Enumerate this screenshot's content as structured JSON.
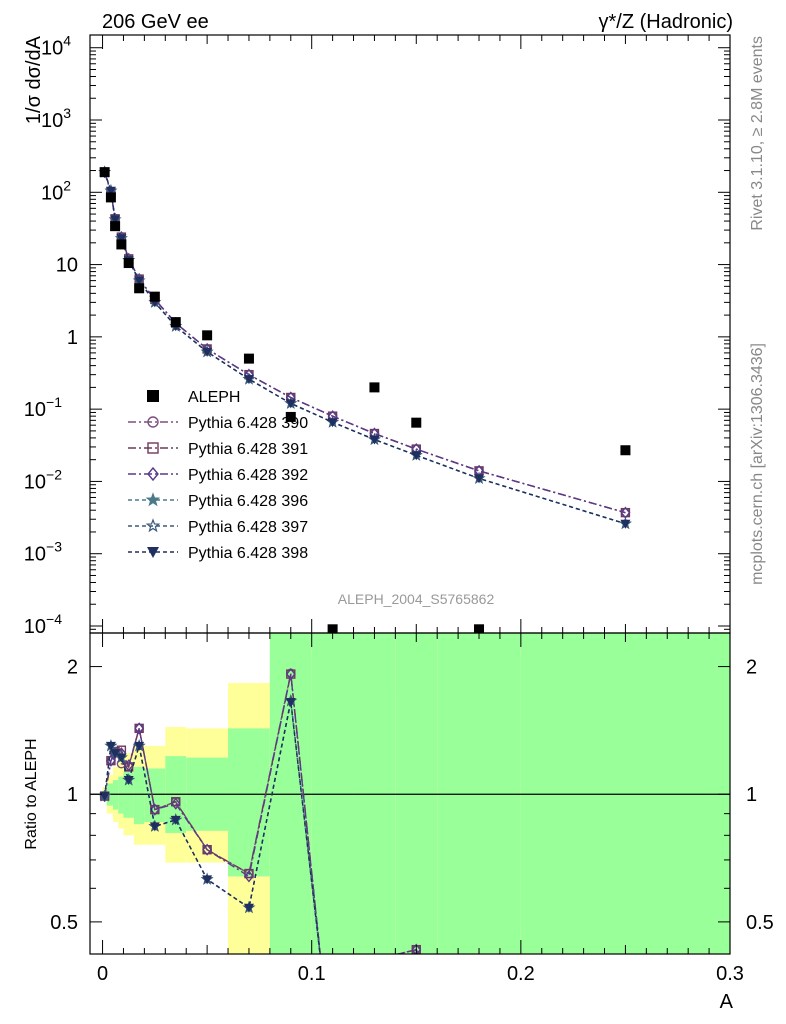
{
  "header": {
    "left": "206 GeV ee",
    "right": "γ*/Z (Hadronic)"
  },
  "side_text": {
    "rivet": "Rivet 3.1.10, ≥ 2.8M events",
    "mcplots": "mcplots.cern.ch [arXiv:1306.3436]"
  },
  "analysis_id": "ALEPH_2004_S5765862",
  "colors": {
    "data": "#000000",
    "p390": "#7f4e7f",
    "p391": "#6e3a5a",
    "p392": "#5a3a8a",
    "p396": "#4a7a8a",
    "p397": "#3a5a7a",
    "p398": "#1f2f5f",
    "band_yellow": "#ffff99",
    "band_green": "#99ff99"
  },
  "chart_data": [
    {
      "type": "scatter",
      "id": "main",
      "ylabel": "1/σ  dσ/dA",
      "y_scale": "log",
      "xlim": [
        -0.006,
        0.3
      ],
      "ylim": [
        8e-05,
        15000
      ],
      "y_ticks": [
        {
          "v": 10000,
          "base": "10",
          "exp": "4"
        },
        {
          "v": 1000,
          "base": "10",
          "exp": "3"
        },
        {
          "v": 100,
          "base": "10",
          "exp": "2"
        },
        {
          "v": 10,
          "base": "10",
          "exp": ""
        },
        {
          "v": 1,
          "base": "1",
          "exp": ""
        },
        {
          "v": 0.1,
          "base": "10",
          "exp": "−1"
        },
        {
          "v": 0.01,
          "base": "10",
          "exp": "−2"
        },
        {
          "v": 0.001,
          "base": "10",
          "exp": "−3"
        },
        {
          "v": 0.0001,
          "base": "10",
          "exp": "−4"
        }
      ],
      "legend_position": "middle-left",
      "series": [
        {
          "name": "ALEPH",
          "key": "data",
          "marker": "square-filled",
          "x": [
            0.001,
            0.004,
            0.006,
            0.009,
            0.0125,
            0.0175,
            0.025,
            0.035,
            0.05,
            0.07,
            0.09,
            0.11,
            0.13,
            0.15,
            0.18,
            0.25
          ],
          "y": [
            190,
            85,
            34,
            19,
            10.5,
            4.7,
            3.6,
            1.6,
            1.05,
            0.5,
            0.078,
            9e-05,
            0.2,
            0.065,
            9e-05,
            0.027
          ]
        },
        {
          "name": "Pythia 6.428 390",
          "key": "p390",
          "marker": "circle-open",
          "dash": "8,3,2,3",
          "x": [
            0.001,
            0.004,
            0.006,
            0.009,
            0.0125,
            0.0175,
            0.025,
            0.035,
            0.05,
            0.07,
            0.09,
            0.11,
            0.13,
            0.15,
            0.18,
            0.25
          ],
          "y": [
            190,
            100,
            43,
            24,
            12,
            6.3,
            3.3,
            1.55,
            0.68,
            0.3,
            0.145,
            0.08,
            0.046,
            0.028,
            0.014,
            0.0037
          ]
        },
        {
          "name": "Pythia 6.428 391",
          "key": "p391",
          "marker": "square-open",
          "dash": "8,3,2,3",
          "x": [
            0.001,
            0.004,
            0.006,
            0.009,
            0.0125,
            0.0175,
            0.025,
            0.035,
            0.05,
            0.07,
            0.09,
            0.11,
            0.13,
            0.15,
            0.18,
            0.25
          ],
          "y": [
            190,
            100,
            43,
            24,
            12,
            6.3,
            3.3,
            1.55,
            0.68,
            0.3,
            0.145,
            0.08,
            0.046,
            0.028,
            0.014,
            0.0037
          ]
        },
        {
          "name": "Pythia 6.428 392",
          "key": "p392",
          "marker": "diamond-open",
          "dash": "8,3,2,3",
          "x": [
            0.001,
            0.004,
            0.006,
            0.009,
            0.0125,
            0.0175,
            0.025,
            0.035,
            0.05,
            0.07,
            0.09,
            0.11,
            0.13,
            0.15,
            0.18,
            0.25
          ],
          "y": [
            190,
            100,
            43,
            24,
            12,
            6.3,
            3.3,
            1.55,
            0.68,
            0.3,
            0.145,
            0.08,
            0.046,
            0.028,
            0.014,
            0.0037
          ]
        },
        {
          "name": "Pythia 6.428 396",
          "key": "p396",
          "marker": "star-filled",
          "dash": "4,3",
          "x": [
            0.001,
            0.004,
            0.006,
            0.009,
            0.0125,
            0.0175,
            0.025,
            0.035,
            0.05,
            0.07,
            0.09,
            0.11,
            0.13,
            0.15,
            0.18,
            0.25
          ],
          "y": [
            190,
            105,
            42,
            23,
            11.5,
            6.0,
            3.0,
            1.4,
            0.62,
            0.26,
            0.12,
            0.066,
            0.038,
            0.023,
            0.011,
            0.0026
          ]
        },
        {
          "name": "Pythia 6.428 397",
          "key": "p397",
          "marker": "star-open",
          "dash": "4,3",
          "x": [
            0.001,
            0.004,
            0.006,
            0.009,
            0.0125,
            0.0175,
            0.025,
            0.035,
            0.05,
            0.07,
            0.09,
            0.11,
            0.13,
            0.15,
            0.18,
            0.25
          ],
          "y": [
            190,
            105,
            42,
            23,
            11.5,
            6.0,
            3.0,
            1.4,
            0.62,
            0.26,
            0.12,
            0.066,
            0.038,
            0.023,
            0.011,
            0.0026
          ]
        },
        {
          "name": "Pythia 6.428 398",
          "key": "p398",
          "marker": "triangle-down-filled",
          "dash": "4,3",
          "x": [
            0.001,
            0.004,
            0.006,
            0.009,
            0.0125,
            0.0175,
            0.025,
            0.035,
            0.05,
            0.07,
            0.09,
            0.11,
            0.13,
            0.15,
            0.18,
            0.25
          ],
          "y": [
            190,
            105,
            42,
            23,
            11.5,
            6.0,
            3.0,
            1.4,
            0.62,
            0.26,
            0.12,
            0.066,
            0.038,
            0.023,
            0.011,
            0.0026
          ]
        }
      ]
    },
    {
      "type": "line",
      "id": "ratio",
      "ylabel": "Ratio to ALEPH",
      "xlabel": "A",
      "y_scale": "log",
      "xlim": [
        -0.006,
        0.3
      ],
      "ylim": [
        0.42,
        2.4
      ],
      "x_ticks": [
        {
          "v": 0,
          "label": "0"
        },
        {
          "v": 0.1,
          "label": "0.1"
        },
        {
          "v": 0.2,
          "label": "0.2"
        },
        {
          "v": 0.3,
          "label": "0.3"
        }
      ],
      "y_ticks": [
        {
          "v": 0.5,
          "label": "0.5"
        },
        {
          "v": 1,
          "label": "1"
        },
        {
          "v": 2,
          "label": "2"
        }
      ],
      "bands": [
        {
          "x0": 0.0,
          "x1": 0.002,
          "y_lo": 0.96,
          "y_hi": 1.04,
          "y2_lo": 0.98,
          "y2_hi": 1.02
        },
        {
          "x0": 0.002,
          "x1": 0.005,
          "y_lo": 0.9,
          "y_hi": 1.11,
          "y2_lo": 0.94,
          "y2_hi": 1.06
        },
        {
          "x0": 0.005,
          "x1": 0.0075,
          "y_lo": 0.86,
          "y_hi": 1.16,
          "y2_lo": 0.92,
          "y2_hi": 1.08
        },
        {
          "x0": 0.0075,
          "x1": 0.01,
          "y_lo": 0.83,
          "y_hi": 1.2,
          "y2_lo": 0.9,
          "y2_hi": 1.1
        },
        {
          "x0": 0.01,
          "x1": 0.015,
          "y_lo": 0.8,
          "y_hi": 1.25,
          "y2_lo": 0.88,
          "y2_hi": 1.13
        },
        {
          "x0": 0.015,
          "x1": 0.02,
          "y_lo": 0.76,
          "y_hi": 1.3,
          "y2_lo": 0.85,
          "y2_hi": 1.16
        },
        {
          "x0": 0.02,
          "x1": 0.03,
          "y_lo": 0.76,
          "y_hi": 1.3,
          "y2_lo": 0.86,
          "y2_hi": 1.15
        },
        {
          "x0": 0.03,
          "x1": 0.04,
          "y_lo": 0.69,
          "y_hi": 1.44,
          "y2_lo": 0.81,
          "y2_hi": 1.23
        },
        {
          "x0": 0.04,
          "x1": 0.06,
          "y_lo": 0.69,
          "y_hi": 1.43,
          "y2_lo": 0.82,
          "y2_hi": 1.22
        },
        {
          "x0": 0.06,
          "x1": 0.08,
          "y_lo": 0.42,
          "y_hi": 1.83,
          "y2_lo": 0.64,
          "y2_hi": 1.43
        },
        {
          "x0": 0.08,
          "x1": 0.1,
          "y_lo": 0.42,
          "y_hi": 2.4,
          "y2_lo": 0.42,
          "y2_hi": 2.4
        },
        {
          "x0": 0.1,
          "x1": 0.12,
          "y_lo": 0.42,
          "y_hi": 2.4,
          "y2_lo": 0.42,
          "y2_hi": 2.4
        },
        {
          "x0": 0.12,
          "x1": 0.14,
          "y_lo": 1.72,
          "y_hi": 2.25,
          "y2_lo": 0.42,
          "y2_hi": 2.4
        },
        {
          "x0": 0.14,
          "x1": 0.16,
          "y_lo": 0.42,
          "y_hi": 2.4,
          "y2_lo": 0.42,
          "y2_hi": 2.4
        },
        {
          "x0": 0.16,
          "x1": 0.2,
          "y_lo": 0.42,
          "y_hi": 2.4,
          "y2_lo": 0.42,
          "y2_hi": 2.4
        },
        {
          "x0": 0.2,
          "x1": 0.3,
          "y_lo": 0.42,
          "y_hi": 2.4,
          "y2_lo": 0.42,
          "y2_hi": 2.4
        }
      ],
      "series": [
        {
          "name": "Pythia 6.428 390",
          "key": "p390",
          "marker": "circle-open",
          "dash": "8,3,2,3",
          "x": [
            0.001,
            0.004,
            0.006,
            0.009,
            0.0125,
            0.0175,
            0.025,
            0.035,
            0.05,
            0.07,
            0.09,
            0.105,
            0.15,
            0.155
          ],
          "y": [
            0.99,
            1.2,
            1.26,
            1.18,
            1.16,
            1.43,
            0.92,
            0.96,
            0.74,
            0.65,
            1.93,
            0.38,
            0.43,
            0.38
          ]
        },
        {
          "name": "Pythia 6.428 391",
          "key": "p391",
          "marker": "square-open",
          "dash": "8,3,2,3",
          "x": [
            0.001,
            0.004,
            0.006,
            0.009,
            0.0125,
            0.0175,
            0.025,
            0.035,
            0.05,
            0.07,
            0.09,
            0.105,
            0.15,
            0.155
          ],
          "y": [
            0.99,
            1.2,
            1.26,
            1.27,
            1.16,
            1.43,
            0.92,
            0.96,
            0.74,
            0.65,
            1.92,
            0.38,
            0.43,
            0.38
          ]
        },
        {
          "name": "Pythia 6.428 392",
          "key": "p392",
          "marker": "diamond-open",
          "dash": "8,3,2,3",
          "x": [
            0.001,
            0.004,
            0.006,
            0.009,
            0.0125,
            0.0175,
            0.025,
            0.035,
            0.05,
            0.07,
            0.09,
            0.105,
            0.15,
            0.155
          ],
          "y": [
            0.99,
            1.2,
            1.25,
            1.25,
            1.17,
            1.43,
            0.92,
            0.95,
            0.74,
            0.64,
            1.92,
            0.38,
            0.43,
            0.38
          ]
        },
        {
          "name": "Pythia 6.428 396",
          "key": "p396",
          "marker": "star-filled",
          "dash": "4,3",
          "x": [
            0.001,
            0.004,
            0.006,
            0.009,
            0.0125,
            0.0175,
            0.025,
            0.035,
            0.05,
            0.07,
            0.09,
            0.105
          ],
          "y": [
            0.99,
            1.3,
            1.25,
            1.22,
            1.08,
            1.3,
            0.84,
            0.87,
            0.63,
            0.54,
            1.66,
            0.38
          ]
        },
        {
          "name": "Pythia 6.428 397",
          "key": "p397",
          "marker": "star-open",
          "dash": "4,3",
          "x": [
            0.001,
            0.004,
            0.006,
            0.009,
            0.0125,
            0.0175,
            0.025,
            0.035,
            0.05,
            0.07,
            0.09,
            0.105
          ],
          "y": [
            0.99,
            1.3,
            1.25,
            1.22,
            1.08,
            1.3,
            0.84,
            0.87,
            0.63,
            0.54,
            1.66,
            0.38
          ]
        },
        {
          "name": "Pythia 6.428 398",
          "key": "p398",
          "marker": "triangle-down-filled",
          "dash": "4,3",
          "x": [
            0.001,
            0.004,
            0.006,
            0.009,
            0.0125,
            0.0175,
            0.025,
            0.035,
            0.05,
            0.07,
            0.09,
            0.105
          ],
          "y": [
            0.99,
            1.3,
            1.25,
            1.22,
            1.08,
            1.3,
            0.84,
            0.87,
            0.63,
            0.54,
            1.65,
            0.38
          ]
        }
      ]
    }
  ]
}
